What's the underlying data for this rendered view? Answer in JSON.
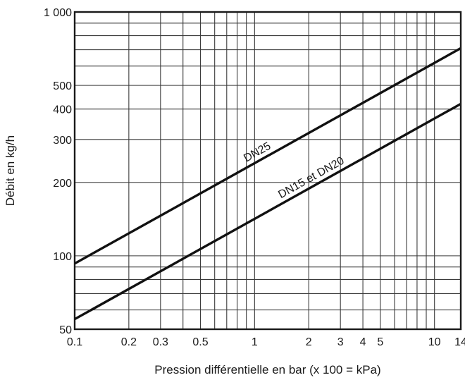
{
  "chart_data": {
    "type": "line",
    "xlabel": "Pression différentielle en bar (x 100 = kPa)",
    "ylabel": "Débit en kg/h",
    "xscale": "log",
    "yscale": "log",
    "xlim": [
      0.1,
      14
    ],
    "ylim": [
      50,
      1000
    ],
    "grid": true,
    "x_ticks": [
      {
        "value": 0.1,
        "label": "0.1"
      },
      {
        "value": 0.2,
        "label": "0.2"
      },
      {
        "value": 0.3,
        "label": "0.3"
      },
      {
        "value": 0.5,
        "label": "0.5"
      },
      {
        "value": 1,
        "label": "1"
      },
      {
        "value": 2,
        "label": "2"
      },
      {
        "value": 3,
        "label": "3"
      },
      {
        "value": 4,
        "label": "4"
      },
      {
        "value": 5,
        "label": "5"
      },
      {
        "value": 10,
        "label": "10"
      },
      {
        "value": 14,
        "label": "14"
      }
    ],
    "y_ticks": [
      {
        "value": 50,
        "label": "50"
      },
      {
        "value": 100,
        "label": "100"
      },
      {
        "value": 200,
        "label": "200"
      },
      {
        "value": 300,
        "label": "300"
      },
      {
        "value": 400,
        "label": "400"
      },
      {
        "value": 500,
        "label": "500"
      },
      {
        "value": 1000,
        "label": "1 000"
      }
    ],
    "x_grid": [
      0.1,
      0.2,
      0.3,
      0.4,
      0.5,
      0.6,
      0.7,
      0.8,
      0.9,
      1,
      2,
      3,
      4,
      5,
      6,
      7,
      8,
      9,
      10,
      14
    ],
    "y_grid": [
      50,
      60,
      70,
      80,
      90,
      100,
      200,
      300,
      400,
      500,
      600,
      700,
      800,
      900,
      1000
    ],
    "series": [
      {
        "name": "DN25",
        "x": [
          0.1,
          14
        ],
        "y": [
          93,
          710
        ]
      },
      {
        "name": "DN15 et DN20",
        "x": [
          0.1,
          14
        ],
        "y": [
          55,
          420
        ]
      }
    ]
  }
}
